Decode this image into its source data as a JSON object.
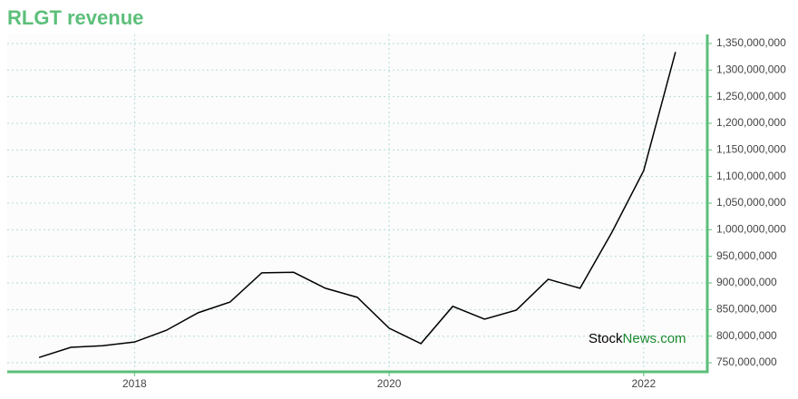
{
  "chart_data": {
    "type": "line",
    "title": "RLGT revenue",
    "x": [
      2017.25,
      2017.5,
      2017.75,
      2018.0,
      2018.25,
      2018.5,
      2018.75,
      2019.0,
      2019.25,
      2019.5,
      2019.75,
      2020.0,
      2020.25,
      2020.5,
      2020.75,
      2021.0,
      2021.25,
      2021.5,
      2021.75,
      2022.0,
      2022.25
    ],
    "series": [
      {
        "name": "RLGT revenue",
        "color": "#000000",
        "values": [
          760000000,
          779000000,
          782000000,
          789000000,
          811000000,
          844000000,
          864000000,
          919000000,
          920000000,
          890000000,
          873000000,
          815000000,
          786000000,
          856000000,
          832000000,
          849000000,
          907000000,
          890000000,
          995000000,
          1111000000,
          1334000000
        ]
      }
    ],
    "xlim": [
      2017.0,
      2022.5
    ],
    "xticks": [
      2018,
      2020,
      2022
    ],
    "ylim": [
      733000000,
      1367000000
    ],
    "yticks": [
      {
        "value": 750000000,
        "label": "750,000,000"
      },
      {
        "value": 800000000,
        "label": "800,000,000"
      },
      {
        "value": 850000000,
        "label": "850,000,000"
      },
      {
        "value": 900000000,
        "label": "900,000,000"
      },
      {
        "value": 950000000,
        "label": "950,000,000"
      },
      {
        "value": 1000000000,
        "label": "1,000,000,000"
      },
      {
        "value": 1050000000,
        "label": "1,050,000,000"
      },
      {
        "value": 1100000000,
        "label": "1,100,000,000"
      },
      {
        "value": 1150000000,
        "label": "1,150,000,000"
      },
      {
        "value": 1200000000,
        "label": "1,200,000,000"
      },
      {
        "value": 1250000000,
        "label": "1,250,000,000"
      },
      {
        "value": 1300000000,
        "label": "1,300,000,000"
      },
      {
        "value": 1350000000,
        "label": "1,350,000,000"
      }
    ],
    "grid": true,
    "axis_color": "#5cbf7a",
    "watermark": {
      "part1": "Stock",
      "part2": "News.com"
    }
  }
}
